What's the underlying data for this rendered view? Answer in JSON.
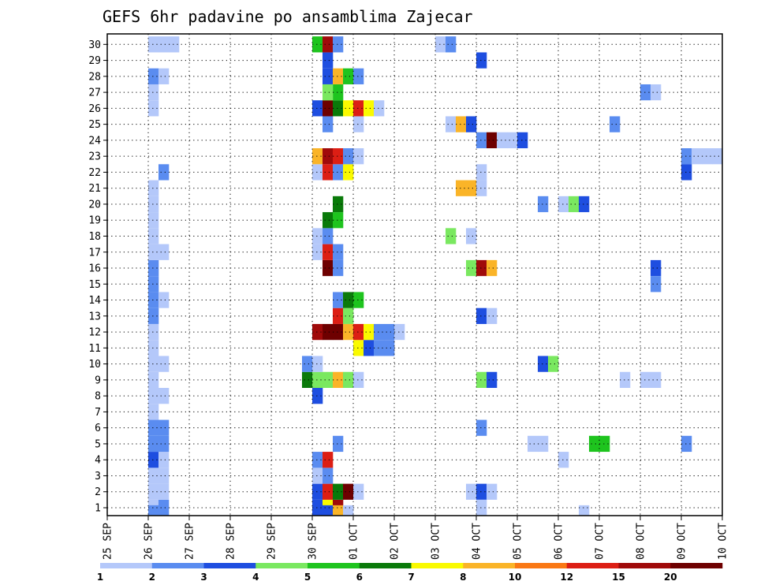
{
  "chart_data": {
    "type": "heatmap",
    "title": "GEFS 6hr padavine po ansamblima Zajecar",
    "xlabel": "",
    "ylabel": "",
    "x_ticks": [
      "25 SEP",
      "26 SEP",
      "27 SEP",
      "28 SEP",
      "29 SEP",
      "30 SEP",
      "01 OCT",
      "02 OCT",
      "03 OCT",
      "04 OCT",
      "05 OCT",
      "06 OCT",
      "07 OCT",
      "08 OCT",
      "09 OCT",
      "10 OCT"
    ],
    "y_ticks": [
      1,
      2,
      3,
      4,
      5,
      6,
      7,
      8,
      9,
      10,
      11,
      12,
      13,
      14,
      15,
      16,
      17,
      18,
      19,
      20,
      21,
      22,
      23,
      24,
      25,
      26,
      27,
      28,
      29,
      30
    ],
    "y_range": [
      0,
      30
    ],
    "x_range_days": [
      0,
      15
    ],
    "grid": true,
    "colorbar": {
      "labels": [
        "1",
        "2",
        "3",
        "4",
        "5",
        "6",
        "7",
        "8",
        "10",
        "12",
        "15",
        "20"
      ],
      "colors": [
        "#b4c8fa",
        "#5a8cf0",
        "#1e4ee0",
        "#7ae860",
        "#1ec41e",
        "#0a7a0a",
        "#fafa00",
        "#fab428",
        "#fa7814",
        "#dc1e14",
        "#a00a0a",
        "#6e0000"
      ]
    },
    "cell_columns_per_day": 4,
    "cells": [
      [
        0,
        4,
        1
      ],
      [
        0,
        5,
        2
      ],
      [
        1,
        4,
        1
      ],
      [
        1,
        5,
        1
      ],
      [
        2,
        4,
        1
      ],
      [
        2,
        5,
        1
      ],
      [
        3,
        4,
        3
      ],
      [
        3,
        5,
        1
      ],
      [
        4,
        4,
        2
      ],
      [
        4,
        5,
        2
      ],
      [
        5,
        4,
        2
      ],
      [
        5,
        5,
        2
      ],
      [
        6,
        4,
        1
      ],
      [
        7,
        4,
        1
      ],
      [
        7,
        5,
        1
      ],
      [
        8,
        4,
        1
      ],
      [
        9,
        4,
        1
      ],
      [
        9,
        5,
        1
      ],
      [
        10,
        4,
        1
      ],
      [
        11,
        4,
        1
      ],
      [
        12,
        4,
        2
      ],
      [
        13,
        4,
        2
      ],
      [
        13,
        5,
        1
      ],
      [
        14,
        4,
        2
      ],
      [
        15,
        4,
        2
      ],
      [
        16,
        4,
        1
      ],
      [
        16,
        5,
        1
      ],
      [
        17,
        4,
        1
      ],
      [
        18,
        4,
        1
      ],
      [
        19,
        4,
        1
      ],
      [
        20,
        4,
        1
      ],
      [
        21,
        5,
        2
      ],
      [
        25,
        4,
        1
      ],
      [
        26,
        4,
        1
      ],
      [
        27,
        4,
        2
      ],
      [
        27,
        5,
        1
      ],
      [
        29,
        4,
        1
      ],
      [
        29,
        5,
        1
      ],
      [
        0,
        20,
        3
      ],
      [
        0,
        21,
        7
      ],
      [
        0,
        22,
        11
      ],
      [
        1,
        20,
        3
      ],
      [
        1,
        21,
        10
      ],
      [
        1,
        22,
        6
      ],
      [
        1,
        23,
        12
      ],
      [
        1,
        24,
        1
      ],
      [
        2,
        20,
        1
      ],
      [
        2,
        21,
        2
      ],
      [
        3,
        20,
        2
      ],
      [
        3,
        21,
        10
      ],
      [
        4,
        22,
        2
      ],
      [
        7,
        20,
        3
      ],
      [
        8,
        19,
        6
      ],
      [
        8,
        20,
        4
      ],
      [
        8,
        21,
        4
      ],
      [
        8,
        22,
        8
      ],
      [
        8,
        23,
        4
      ],
      [
        8,
        24,
        1
      ],
      [
        9,
        19,
        2
      ],
      [
        9,
        20,
        1
      ],
      [
        10,
        24,
        7
      ],
      [
        10,
        25,
        3
      ],
      [
        10,
        26,
        2
      ],
      [
        10,
        27,
        2
      ],
      [
        11,
        20,
        11
      ],
      [
        11,
        21,
        12
      ],
      [
        11,
        22,
        12
      ],
      [
        11,
        23,
        8
      ],
      [
        11,
        24,
        10
      ],
      [
        11,
        25,
        7
      ],
      [
        11,
        26,
        2
      ],
      [
        11,
        27,
        2
      ],
      [
        11,
        28,
        1
      ],
      [
        12,
        22,
        10
      ],
      [
        12,
        23,
        4
      ],
      [
        13,
        22,
        2
      ],
      [
        13,
        23,
        6
      ],
      [
        13,
        24,
        5
      ],
      [
        15,
        21,
        12
      ],
      [
        15,
        22,
        2
      ],
      [
        16,
        20,
        1
      ],
      [
        16,
        21,
        10
      ],
      [
        16,
        22,
        2
      ],
      [
        17,
        20,
        1
      ],
      [
        17,
        21,
        2
      ],
      [
        18,
        21,
        6
      ],
      [
        18,
        22,
        5
      ],
      [
        19,
        22,
        6
      ],
      [
        21,
        20,
        1
      ],
      [
        21,
        21,
        10
      ],
      [
        21,
        22,
        2
      ],
      [
        21,
        23,
        7
      ],
      [
        22,
        20,
        8
      ],
      [
        22,
        21,
        11
      ],
      [
        22,
        22,
        10
      ],
      [
        22,
        23,
        2
      ],
      [
        22,
        24,
        1
      ],
      [
        24,
        21,
        2
      ],
      [
        24,
        24,
        1
      ],
      [
        25,
        20,
        3
      ],
      [
        25,
        21,
        12
      ],
      [
        25,
        22,
        6
      ],
      [
        25,
        23,
        7
      ],
      [
        25,
        24,
        10
      ],
      [
        25,
        25,
        7
      ],
      [
        25,
        26,
        1
      ],
      [
        26,
        21,
        5
      ],
      [
        26,
        22,
        5
      ],
      [
        27,
        21,
        3
      ],
      [
        27,
        22,
        8
      ],
      [
        27,
        23,
        5
      ],
      [
        27,
        24,
        2
      ],
      [
        28,
        21,
        3
      ],
      [
        29,
        20,
        5
      ],
      [
        29,
        21,
        11
      ],
      [
        29,
        22,
        2
      ],
      [
        29,
        32,
        1
      ],
      [
        29,
        33,
        2
      ],
      [
        28,
        36,
        3
      ],
      [
        24,
        33,
        1
      ],
      [
        24,
        34,
        8
      ],
      [
        24,
        35,
        3
      ],
      [
        23,
        36,
        2
      ],
      [
        23,
        37,
        12
      ],
      [
        23,
        38,
        1
      ],
      [
        23,
        39,
        1
      ],
      [
        23,
        40,
        3
      ],
      [
        20,
        34,
        8
      ],
      [
        20,
        35,
        8
      ],
      [
        20,
        36,
        1
      ],
      [
        21,
        36,
        1
      ],
      [
        19,
        42,
        2
      ],
      [
        19,
        44,
        1
      ],
      [
        19,
        45,
        4
      ],
      [
        19,
        46,
        3
      ],
      [
        17,
        33,
        4
      ],
      [
        17,
        35,
        1
      ],
      [
        15,
        35,
        4
      ],
      [
        15,
        36,
        11
      ],
      [
        15,
        37,
        8
      ],
      [
        12,
        36,
        3
      ],
      [
        12,
        37,
        1
      ],
      [
        9,
        42,
        3
      ],
      [
        9,
        43,
        4
      ],
      [
        8,
        36,
        4
      ],
      [
        8,
        37,
        3
      ],
      [
        5,
        36,
        2
      ],
      [
        4,
        41,
        1
      ],
      [
        4,
        42,
        1
      ],
      [
        4,
        47,
        5
      ],
      [
        4,
        48,
        5
      ],
      [
        1,
        35,
        1
      ],
      [
        1,
        36,
        3
      ],
      [
        1,
        37,
        1
      ],
      [
        0,
        36,
        1
      ],
      [
        26,
        52,
        2
      ],
      [
        26,
        53,
        1
      ],
      [
        22,
        56,
        2
      ],
      [
        22,
        57,
        1
      ],
      [
        22,
        58,
        1
      ],
      [
        22,
        59,
        1
      ],
      [
        22,
        60,
        3
      ],
      [
        16,
        60,
        5
      ],
      [
        15,
        53,
        3
      ],
      [
        14,
        53,
        2
      ],
      [
        8,
        50,
        1
      ],
      [
        8,
        52,
        1
      ],
      [
        8,
        53,
        1
      ],
      [
        3,
        44,
        1
      ],
      [
        4,
        56,
        2
      ],
      [
        21,
        56,
        3
      ],
      [
        24,
        49,
        2
      ],
      [
        26,
        21,
        4
      ],
      [
        29,
        6,
        1
      ],
      [
        -1,
        4,
        2
      ],
      [
        -1,
        21,
        3
      ],
      [
        -1,
        22,
        8
      ],
      [
        -1,
        23,
        1
      ],
      [
        -1,
        46,
        1
      ]
    ]
  }
}
